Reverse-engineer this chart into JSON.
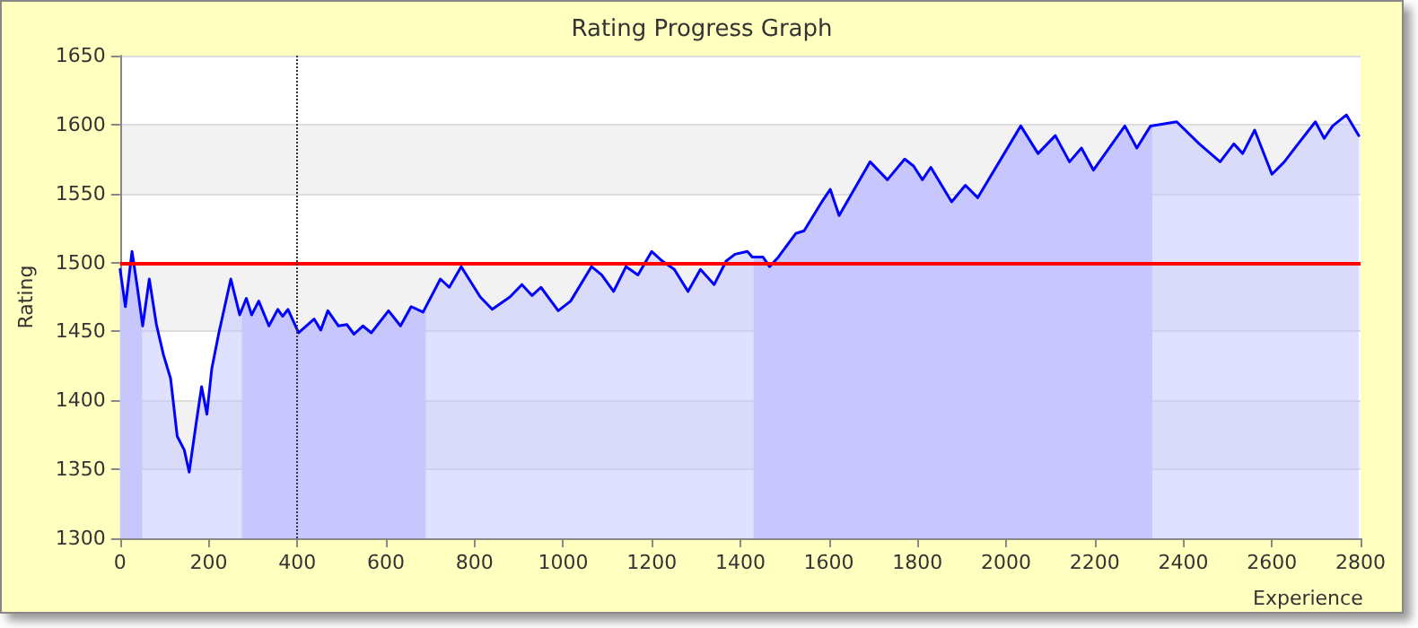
{
  "chart_data": {
    "type": "area",
    "title": "Rating Progress Graph",
    "xlabel": "Experience",
    "ylabel": "Rating",
    "x": [
      0,
      12,
      27,
      39,
      51,
      66,
      82,
      98,
      114,
      129,
      145,
      156,
      172,
      184,
      196,
      207,
      223,
      250,
      270,
      285,
      297,
      313,
      336,
      356,
      367,
      379,
      403,
      438,
      453,
      469,
      493,
      512,
      528,
      548,
      567,
      606,
      633,
      657,
      684,
      723,
      743,
      770,
      813,
      840,
      880,
      907,
      930,
      950,
      989,
      1017,
      1064,
      1087,
      1114,
      1142,
      1169,
      1200,
      1224,
      1251,
      1282,
      1310,
      1341,
      1368,
      1388,
      1416,
      1427,
      1451,
      1466,
      1486,
      1525,
      1544,
      1584,
      1603,
      1623,
      1693,
      1732,
      1771,
      1791,
      1811,
      1830,
      1877,
      1908,
      1936,
      2033,
      2072,
      2111,
      2143,
      2170,
      2197,
      2268,
      2295,
      2326,
      2385,
      2436,
      2483,
      2514,
      2534,
      2561,
      2600,
      2628,
      2659,
      2698,
      2718,
      2737,
      2768,
      2796
    ],
    "series": [
      {
        "color": "#0000ff",
        "values": [
          1495,
          1468,
          1508,
          1482,
          1454,
          1488,
          1455,
          1433,
          1416,
          1374,
          1364,
          1348,
          1384,
          1410,
          1390,
          1423,
          1449,
          1488,
          1462,
          1474,
          1462,
          1472,
          1454,
          1466,
          1461,
          1466,
          1449,
          1459,
          1451,
          1465,
          1454,
          1455,
          1448,
          1454,
          1449,
          1465,
          1454,
          1468,
          1464,
          1488,
          1482,
          1497,
          1475,
          1466,
          1475,
          1484,
          1476,
          1482,
          1465,
          1472,
          1497,
          1491,
          1479,
          1497,
          1491,
          1508,
          1501,
          1495,
          1479,
          1495,
          1484,
          1501,
          1506,
          1508,
          1504,
          1504,
          1497,
          1504,
          1521,
          1523,
          1544,
          1553,
          1534,
          1573,
          1560,
          1575,
          1570,
          1560,
          1569,
          1544,
          1556,
          1547,
          1599,
          1579,
          1592,
          1573,
          1583,
          1567,
          1599,
          1583,
          1599,
          1602,
          1586,
          1573,
          1586,
          1579,
          1596,
          1564,
          1573,
          1586,
          1602,
          1590,
          1599,
          1607,
          1592
        ]
      }
    ],
    "xlim": [
      0,
      2800
    ],
    "xticks": [
      0,
      200,
      400,
      600,
      800,
      1000,
      1200,
      1400,
      1600,
      1800,
      2000,
      2200,
      2400,
      2600,
      2800
    ],
    "ylim": [
      1300,
      1650
    ],
    "yticks": [
      1300,
      1350,
      1400,
      1450,
      1500,
      1550,
      1600,
      1650
    ],
    "ref_lines": [
      {
        "axis": "y",
        "value": 1500,
        "color": "#ff0000",
        "line_style": "solid"
      },
      {
        "axis": "x",
        "value": 400,
        "color": "#333333",
        "line_style": "dotted"
      }
    ],
    "bands": [
      {
        "axis": "x",
        "from": 0,
        "to": 50,
        "color": "#cdcdfa"
      },
      {
        "axis": "x",
        "from": 275,
        "to": 690,
        "color": "#cdcdfa"
      },
      {
        "axis": "x",
        "from": 1430,
        "to": 2330,
        "color": "#cdcdfa"
      }
    ],
    "grid": "y",
    "marker": "none",
    "line_style": "solid"
  }
}
